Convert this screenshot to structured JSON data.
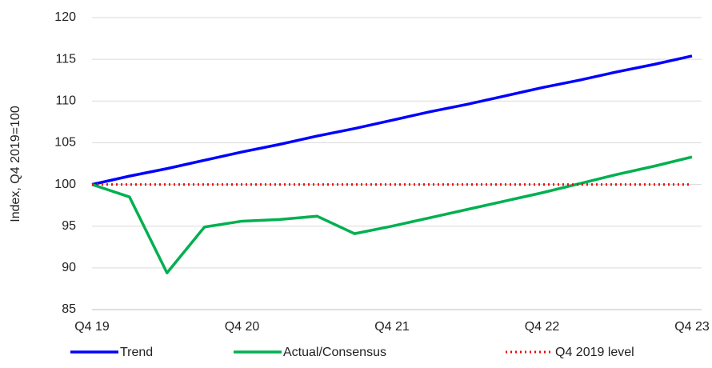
{
  "chart_data": {
    "type": "line",
    "y_label": "Index, Q4 2019=100",
    "categories": [
      "Q4 19",
      null,
      null,
      null,
      "Q4 20",
      null,
      null,
      null,
      "Q4 21",
      null,
      null,
      null,
      "Q4 22",
      null,
      null,
      null,
      "Q4 23"
    ],
    "ylim": [
      85,
      120
    ],
    "yticks": [
      85,
      90,
      95,
      100,
      105,
      110,
      115,
      120
    ],
    "grid": true,
    "legend": "bottom",
    "series": [
      {
        "name": "Trend",
        "color": "#0000ff",
        "dash": "solid",
        "values": [
          100,
          101.0,
          101.9,
          102.9,
          103.9,
          104.8,
          105.8,
          106.7,
          107.7,
          108.7,
          109.6,
          110.6,
          111.6,
          112.5,
          113.5,
          114.4,
          115.4
        ]
      },
      {
        "name": "Actual/Consensus",
        "color": "#00b050",
        "dash": "solid",
        "values": [
          100,
          98.5,
          89.4,
          94.9,
          95.6,
          95.8,
          96.2,
          94.1,
          95.0,
          96.0,
          97.0,
          98.0,
          99.0,
          100.1,
          101.2,
          102.2,
          103.3
        ]
      },
      {
        "name": "Q4 2019 level",
        "color": "#ff0000",
        "dash": "dotted",
        "values": [
          100,
          100,
          100,
          100,
          100,
          100,
          100,
          100,
          100,
          100,
          100,
          100,
          100,
          100,
          100,
          100,
          100
        ]
      }
    ]
  }
}
